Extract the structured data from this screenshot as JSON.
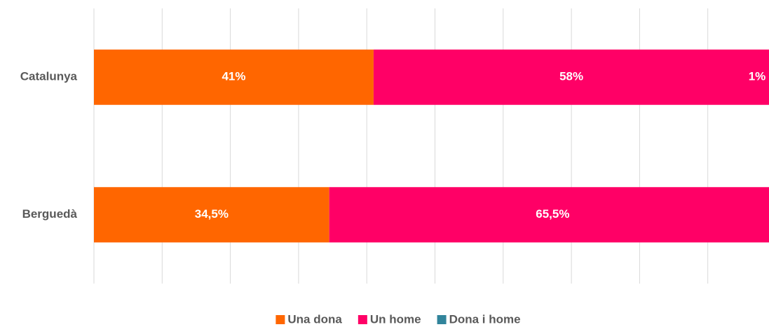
{
  "chart_data": {
    "type": "stacked_bar_horizontal",
    "categories": [
      "Catalunya",
      "Berguedà"
    ],
    "series": [
      {
        "name": "Una dona",
        "color": "#ff6600",
        "values": [
          41,
          34.5
        ],
        "value_labels": [
          "41%",
          "34,5%"
        ]
      },
      {
        "name": "Un home",
        "color": "#ff0066",
        "values": [
          58,
          65.5
        ],
        "value_labels": [
          "58%",
          "65,5%"
        ]
      },
      {
        "name": "Dona i home",
        "color": "#31849b",
        "values": [
          1,
          0
        ],
        "value_labels": [
          "1%",
          null
        ]
      }
    ],
    "xlim": [
      0,
      100
    ],
    "xticks": [
      0,
      10,
      20,
      30,
      40,
      50,
      60,
      70,
      80,
      90,
      100
    ],
    "grid": true,
    "legend": "bottom"
  }
}
